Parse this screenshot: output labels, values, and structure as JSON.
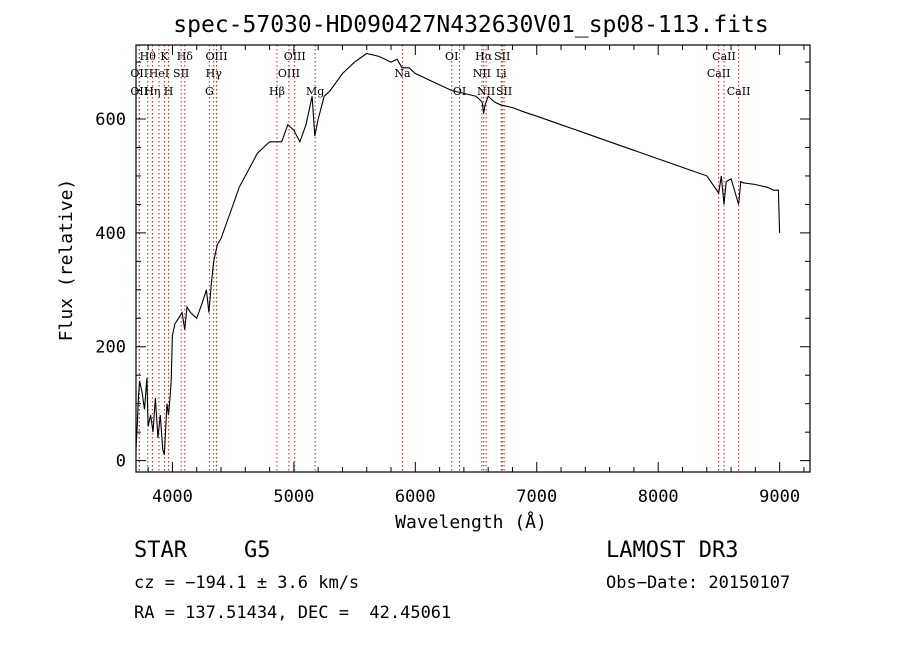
{
  "chart_data": {
    "type": "line",
    "title": "spec-57030-HD090427N432630V01_sp08-113.fits",
    "xlabel": "Wavelength (Å)",
    "ylabel": "Flux (relative)",
    "xlim": [
      3700,
      9250
    ],
    "ylim": [
      -20,
      730
    ],
    "xticks": [
      4000,
      5000,
      6000,
      7000,
      8000,
      9000
    ],
    "yticks": [
      0,
      200,
      400,
      600
    ],
    "xtick_labels": [
      "4000",
      "5000",
      "6000",
      "7000",
      "8000",
      "9000"
    ],
    "ytick_labels": [
      "0",
      "200",
      "400",
      "600"
    ],
    "series": [
      {
        "name": "spectrum",
        "x": [
          3700,
          3710,
          3720,
          3730,
          3750,
          3770,
          3790,
          3800,
          3820,
          3840,
          3860,
          3880,
          3900,
          3920,
          3933,
          3945,
          3955,
          3968,
          3980,
          3990,
          4000,
          4020,
          4050,
          4080,
          4101,
          4120,
          4150,
          4200,
          4250,
          4280,
          4300,
          4320,
          4340,
          4370,
          4400,
          4450,
          4500,
          4550,
          4600,
          4650,
          4700,
          4750,
          4800,
          4861,
          4900,
          4950,
          5000,
          5050,
          5100,
          5150,
          5172,
          5200,
          5250,
          5300,
          5400,
          5500,
          5600,
          5700,
          5750,
          5800,
          5850,
          5890,
          5950,
          6000,
          6050,
          6100,
          6200,
          6300,
          6400,
          6500,
          6550,
          6563,
          6575,
          6600,
          6650,
          6700,
          6800,
          6900,
          7000,
          7200,
          7400,
          7600,
          7800,
          8000,
          8200,
          8400,
          8498,
          8520,
          8542,
          8560,
          8600,
          8662,
          8680,
          8700,
          8800,
          8900,
          8950,
          8990,
          9000
        ],
        "values": [
          20,
          60,
          110,
          140,
          120,
          90,
          145,
          60,
          80,
          50,
          110,
          40,
          80,
          20,
          10,
          60,
          100,
          80,
          110,
          140,
          220,
          240,
          250,
          260,
          230,
          270,
          260,
          250,
          280,
          300,
          260,
          310,
          350,
          380,
          390,
          420,
          450,
          480,
          500,
          520,
          540,
          550,
          560,
          560,
          560,
          590,
          580,
          560,
          590,
          640,
          570,
          600,
          640,
          650,
          680,
          700,
          715,
          710,
          705,
          700,
          705,
          690,
          690,
          680,
          675,
          670,
          660,
          650,
          645,
          640,
          630,
          610,
          625,
          640,
          630,
          625,
          620,
          612,
          605,
          590,
          575,
          560,
          545,
          530,
          515,
          500,
          470,
          500,
          450,
          490,
          495,
          450,
          490,
          488,
          485,
          480,
          475,
          475,
          400
        ]
      }
    ],
    "line_markers": [
      {
        "label": "OII",
        "x": 3727,
        "row": 3
      },
      {
        "label": "OII",
        "x": 3727,
        "row": 2
      },
      {
        "label": "Hθ",
        "x": 3797,
        "row": 1
      },
      {
        "label": "Hη",
        "x": 3835,
        "row": 3
      },
      {
        "label": "HeI",
        "x": 3889,
        "row": 2
      },
      {
        "label": "K",
        "x": 3934,
        "row": 1
      },
      {
        "label": "H",
        "x": 3968,
        "row": 3
      },
      {
        "label": "SII",
        "x": 4072,
        "row": 2
      },
      {
        "label": "Hδ",
        "x": 4102,
        "row": 1
      },
      {
        "label": "G",
        "x": 4304,
        "row": 3
      },
      {
        "label": "Hγ",
        "x": 4340,
        "row": 2
      },
      {
        "label": "OIII",
        "x": 4363,
        "row": 1
      },
      {
        "label": "Hβ",
        "x": 4861,
        "row": 3
      },
      {
        "label": "OIII",
        "x": 4959,
        "row": 2
      },
      {
        "label": "OIII",
        "x": 5007,
        "row": 1
      },
      {
        "label": "Mg",
        "x": 5175,
        "row": 3
      },
      {
        "label": "Na",
        "x": 5894,
        "row": 2
      },
      {
        "label": "OI",
        "x": 6300,
        "row": 1
      },
      {
        "label": "OI",
        "x": 6364,
        "row": 3
      },
      {
        "label": "NII",
        "x": 6548,
        "row": 2
      },
      {
        "label": "Hα",
        "x": 6563,
        "row": 1
      },
      {
        "label": "NII",
        "x": 6583,
        "row": 3
      },
      {
        "label": "SII",
        "x": 6716,
        "row": 1
      },
      {
        "label": "Li",
        "x": 6708,
        "row": 2
      },
      {
        "label": "SII",
        "x": 6731,
        "row": 3
      },
      {
        "label": "CaII",
        "x": 8498,
        "row": 2
      },
      {
        "label": "CaII",
        "x": 8542,
        "row": 1
      },
      {
        "label": "CaII",
        "x": 8662,
        "row": 3
      }
    ]
  },
  "info": {
    "object_type": "STAR",
    "subclass": "G5",
    "survey": "LAMOST DR3",
    "cz": "cz = −194.1 ± 3.6 km/s",
    "obs_date": "Obs−Date: 20150107",
    "coords": "RA = 137.51434, DEC =  42.45061"
  },
  "colors": {
    "spectrum": "#000000",
    "marker_line": "#b22222",
    "axes": "#000000"
  }
}
